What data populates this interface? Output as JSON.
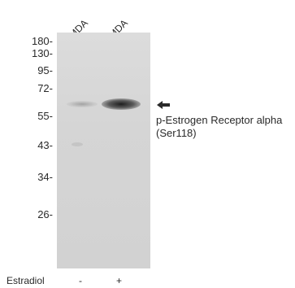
{
  "lanes": [
    "MDA",
    "MDA"
  ],
  "markers": [
    "180-",
    "130-",
    "95-",
    "72-",
    "55-",
    "43-",
    "34-",
    "26-"
  ],
  "target": {
    "line1": "p-Estrogen Receptor alpha",
    "line2": "(Ser118)"
  },
  "treatment": {
    "name": "Estradiol",
    "values": [
      "-",
      "+"
    ]
  }
}
